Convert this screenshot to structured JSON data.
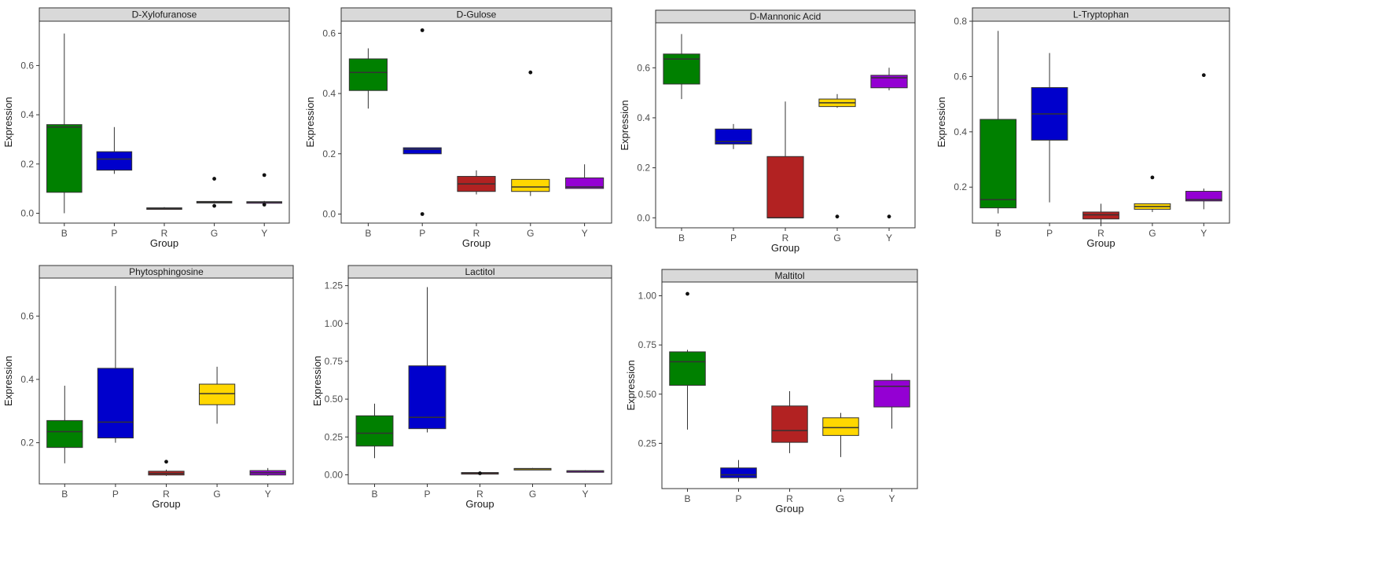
{
  "chart_data": [
    {
      "type": "boxplot",
      "title": "D-Xylofuranose",
      "xlabel": "Group",
      "ylabel": "Expression",
      "categories": [
        "B",
        "P",
        "R",
        "G",
        "Y"
      ],
      "ylim": [
        -0.04,
        0.78
      ],
      "yticks": [
        0.0,
        0.2,
        0.4,
        0.6
      ],
      "ytick_labels": [
        "0.0",
        "0.2",
        "0.4",
        "0.6"
      ],
      "boxes": [
        {
          "group": "B",
          "min": 0.0,
          "q1": 0.085,
          "median": 0.35,
          "q3": 0.36,
          "max": 0.73,
          "outliers": []
        },
        {
          "group": "P",
          "min": 0.16,
          "q1": 0.175,
          "median": 0.22,
          "q3": 0.25,
          "max": 0.35,
          "outliers": []
        },
        {
          "group": "R",
          "min": 0.015,
          "q1": 0.017,
          "median": 0.02,
          "q3": 0.022,
          "max": 0.025,
          "outliers": []
        },
        {
          "group": "G",
          "min": 0.04,
          "q1": 0.042,
          "median": 0.045,
          "q3": 0.048,
          "max": 0.05,
          "outliers": [
            0.14,
            0.03
          ]
        },
        {
          "group": "Y",
          "min": 0.04,
          "q1": 0.042,
          "median": 0.045,
          "q3": 0.047,
          "max": 0.05,
          "outliers": [
            0.155,
            0.035
          ]
        }
      ]
    },
    {
      "type": "boxplot",
      "title": "D-Gulose",
      "xlabel": "Group",
      "ylabel": "Expression",
      "categories": [
        "B",
        "P",
        "R",
        "G",
        "Y"
      ],
      "ylim": [
        -0.03,
        0.64
      ],
      "yticks": [
        0.0,
        0.2,
        0.4,
        0.6
      ],
      "ytick_labels": [
        "0.0",
        "0.2",
        "0.4",
        "0.6"
      ],
      "boxes": [
        {
          "group": "B",
          "min": 0.35,
          "q1": 0.41,
          "median": 0.47,
          "q3": 0.515,
          "max": 0.55,
          "outliers": []
        },
        {
          "group": "P",
          "min": 0.2,
          "q1": 0.2,
          "median": 0.215,
          "q3": 0.22,
          "max": 0.22,
          "outliers": [
            0.61,
            0.0
          ]
        },
        {
          "group": "R",
          "min": 0.065,
          "q1": 0.075,
          "median": 0.1,
          "q3": 0.125,
          "max": 0.145,
          "outliers": []
        },
        {
          "group": "G",
          "min": 0.06,
          "q1": 0.075,
          "median": 0.09,
          "q3": 0.115,
          "max": 0.115,
          "outliers": [
            0.47
          ]
        },
        {
          "group": "Y",
          "min": 0.085,
          "q1": 0.085,
          "median": 0.09,
          "q3": 0.12,
          "max": 0.165,
          "outliers": []
        }
      ]
    },
    {
      "type": "boxplot",
      "title": "D-Mannonic Acid",
      "xlabel": "Group",
      "ylabel": "Expression",
      "categories": [
        "B",
        "P",
        "R",
        "G",
        "Y"
      ],
      "ylim": [
        -0.04,
        0.78
      ],
      "yticks": [
        0.0,
        0.2,
        0.4,
        0.6
      ],
      "ytick_labels": [
        "0.0",
        "0.2",
        "0.4",
        "0.6"
      ],
      "boxes": [
        {
          "group": "B",
          "min": 0.475,
          "q1": 0.535,
          "median": 0.635,
          "q3": 0.655,
          "max": 0.735,
          "outliers": []
        },
        {
          "group": "P",
          "min": 0.275,
          "q1": 0.295,
          "median": 0.305,
          "q3": 0.355,
          "max": 0.375,
          "outliers": []
        },
        {
          "group": "R",
          "min": 0.0,
          "q1": 0.0,
          "median": 0.0,
          "q3": 0.245,
          "max": 0.465,
          "outliers": []
        },
        {
          "group": "G",
          "min": 0.44,
          "q1": 0.445,
          "median": 0.46,
          "q3": 0.475,
          "max": 0.495,
          "outliers": [
            0.005
          ]
        },
        {
          "group": "Y",
          "min": 0.51,
          "q1": 0.52,
          "median": 0.56,
          "q3": 0.57,
          "max": 0.6,
          "outliers": [
            0.005
          ]
        }
      ]
    },
    {
      "type": "boxplot",
      "title": "L-Tryptophan",
      "xlabel": "Group",
      "ylabel": "Expression",
      "categories": [
        "B",
        "P",
        "R",
        "G",
        "Y"
      ],
      "ylim": [
        0.07,
        0.8
      ],
      "yticks": [
        0.2,
        0.4,
        0.6,
        0.8
      ],
      "ytick_labels": [
        "0.2",
        "0.4",
        "0.6",
        "0.8"
      ],
      "boxes": [
        {
          "group": "B",
          "min": 0.105,
          "q1": 0.125,
          "median": 0.155,
          "q3": 0.445,
          "max": 0.765,
          "outliers": []
        },
        {
          "group": "P",
          "min": 0.145,
          "q1": 0.37,
          "median": 0.465,
          "q3": 0.56,
          "max": 0.685,
          "outliers": []
        },
        {
          "group": "R",
          "min": 0.065,
          "q1": 0.085,
          "median": 0.1,
          "q3": 0.11,
          "max": 0.14,
          "outliers": []
        },
        {
          "group": "G",
          "min": 0.11,
          "q1": 0.12,
          "median": 0.13,
          "q3": 0.14,
          "max": 0.14,
          "outliers": [
            0.235
          ]
        },
        {
          "group": "Y",
          "min": 0.12,
          "q1": 0.15,
          "median": 0.155,
          "q3": 0.185,
          "max": 0.195,
          "outliers": [
            0.605
          ]
        }
      ]
    },
    {
      "type": "boxplot",
      "title": "Phytosphingosine",
      "xlabel": "Group",
      "ylabel": "Expression",
      "categories": [
        "B",
        "P",
        "R",
        "G",
        "Y"
      ],
      "ylim": [
        0.07,
        0.72
      ],
      "yticks": [
        0.2,
        0.4,
        0.6
      ],
      "ytick_labels": [
        "0.2",
        "0.4",
        "0.6"
      ],
      "boxes": [
        {
          "group": "B",
          "min": 0.135,
          "q1": 0.185,
          "median": 0.235,
          "q3": 0.27,
          "max": 0.38,
          "outliers": []
        },
        {
          "group": "P",
          "min": 0.2,
          "q1": 0.215,
          "median": 0.265,
          "q3": 0.435,
          "max": 0.695,
          "outliers": []
        },
        {
          "group": "R",
          "min": 0.095,
          "q1": 0.098,
          "median": 0.103,
          "q3": 0.11,
          "max": 0.115,
          "outliers": [
            0.14
          ]
        },
        {
          "group": "G",
          "min": 0.26,
          "q1": 0.32,
          "median": 0.355,
          "q3": 0.385,
          "max": 0.44,
          "outliers": []
        },
        {
          "group": "Y",
          "min": 0.095,
          "q1": 0.098,
          "median": 0.105,
          "q3": 0.112,
          "max": 0.12,
          "outliers": []
        }
      ]
    },
    {
      "type": "boxplot",
      "title": "Lactitol",
      "xlabel": "Group",
      "ylabel": "Expression",
      "categories": [
        "B",
        "P",
        "R",
        "G",
        "Y"
      ],
      "ylim": [
        -0.06,
        1.3
      ],
      "yticks": [
        0.0,
        0.25,
        0.5,
        0.75,
        1.0,
        1.25
      ],
      "ytick_labels": [
        "0.00",
        "0.25",
        "0.50",
        "0.75",
        "1.00",
        "1.25"
      ],
      "boxes": [
        {
          "group": "B",
          "min": 0.11,
          "q1": 0.19,
          "median": 0.275,
          "q3": 0.39,
          "max": 0.47,
          "outliers": []
        },
        {
          "group": "P",
          "min": 0.28,
          "q1": 0.305,
          "median": 0.38,
          "q3": 0.72,
          "max": 1.24,
          "outliers": []
        },
        {
          "group": "R",
          "min": 0.005,
          "q1": 0.01,
          "median": 0.012,
          "q3": 0.015,
          "max": 0.018,
          "outliers": [
            0.01
          ]
        },
        {
          "group": "G",
          "min": 0.036,
          "q1": 0.038,
          "median": 0.04,
          "q3": 0.042,
          "max": 0.045,
          "outliers": []
        },
        {
          "group": "Y",
          "min": 0.02,
          "q1": 0.022,
          "median": 0.025,
          "q3": 0.027,
          "max": 0.03,
          "outliers": []
        }
      ]
    },
    {
      "type": "boxplot",
      "title": "Maltitol",
      "xlabel": "Group",
      "ylabel": "Expression",
      "categories": [
        "B",
        "P",
        "R",
        "G",
        "Y"
      ],
      "ylim": [
        0.02,
        1.07
      ],
      "yticks": [
        0.25,
        0.5,
        0.75,
        1.0
      ],
      "ytick_labels": [
        "0.25",
        "0.50",
        "0.75",
        "1.00"
      ],
      "boxes": [
        {
          "group": "B",
          "min": 0.32,
          "q1": 0.545,
          "median": 0.665,
          "q3": 0.715,
          "max": 0.725,
          "outliers": [
            1.01
          ]
        },
        {
          "group": "P",
          "min": 0.055,
          "q1": 0.075,
          "median": 0.09,
          "q3": 0.125,
          "max": 0.165,
          "outliers": []
        },
        {
          "group": "R",
          "min": 0.2,
          "q1": 0.255,
          "median": 0.315,
          "q3": 0.44,
          "max": 0.515,
          "outliers": []
        },
        {
          "group": "G",
          "min": 0.18,
          "q1": 0.29,
          "median": 0.33,
          "q3": 0.38,
          "max": 0.405,
          "outliers": []
        },
        {
          "group": "Y",
          "min": 0.325,
          "q1": 0.435,
          "median": 0.54,
          "q3": 0.57,
          "max": 0.605,
          "outliers": []
        }
      ]
    }
  ],
  "group_colors": {
    "B": "#008000",
    "P": "#0000cc",
    "R": "#b22222",
    "G": "#ffd700",
    "Y": "#9400d3"
  }
}
